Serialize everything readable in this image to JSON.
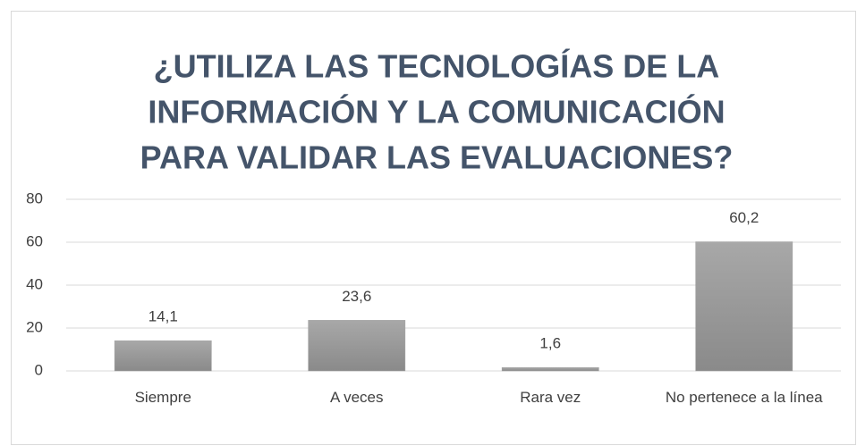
{
  "chart_data": {
    "type": "bar",
    "title": [
      "¿UTILIZA LAS TECNOLOGÍAS DE LA",
      "INFORMACIÓN Y LA COMUNICACIÓN",
      "PARA VALIDAR LAS EVALUACIONES?"
    ],
    "categories": [
      "Siempre",
      "A veces",
      "Rara vez",
      "No pertenece a la línea"
    ],
    "values": [
      14.1,
      23.6,
      1.6,
      60.2
    ],
    "value_labels": [
      "14,1",
      "23,6",
      "1,6",
      "60,2"
    ],
    "color": "#a0a0a0",
    "ylim": [
      0,
      80
    ],
    "yticks": [
      0,
      20,
      40,
      60,
      80
    ],
    "grid": true
  }
}
